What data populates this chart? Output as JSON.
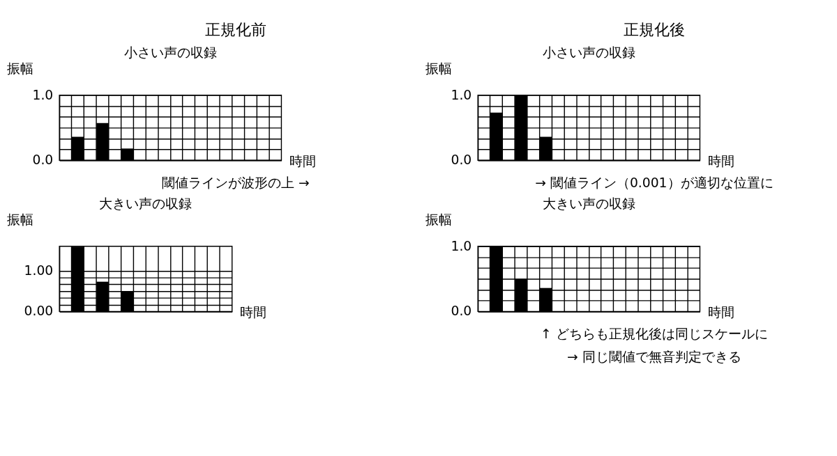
{
  "chart_data": [
    {
      "type": "bar",
      "title": "小さい声の収録",
      "xlabel": "時間",
      "ylabel": "振幅",
      "annotations": [
        "正規化前",
        "閾値ラインが波形の上 →"
      ],
      "categories": [
        null,
        null,
        null,
        null,
        null,
        null,
        null,
        null,
        null,
        null,
        null,
        null,
        null,
        null,
        null,
        null,
        null,
        null
      ],
      "values": [
        null,
        0.36,
        null,
        0.57,
        null,
        0.18,
        null,
        null,
        null,
        null,
        null,
        null,
        null,
        null,
        null,
        null,
        null,
        null
      ],
      "color": "#000000",
      "ylim": [
        0,
        1
      ],
      "yticks": [
        {
          "value": 0,
          "label": "0.0"
        },
        {
          "value": 0.1667,
          "label": null
        },
        {
          "value": 0.3333,
          "label": null
        },
        {
          "value": 0.5,
          "label": null
        },
        {
          "value": 0.6667,
          "label": null
        },
        {
          "value": 0.8333,
          "label": null
        },
        {
          "value": 1,
          "label": "1.0"
        }
      ],
      "grid": true,
      "tick_labels": "y"
    },
    {
      "type": "bar",
      "title": "小さい声の収録",
      "xlabel": "時間",
      "ylabel": "振幅",
      "annotations": [
        "正規化後",
        "→ 閾値ライン（0.001）が適切な位置に"
      ],
      "categories": [
        null,
        null,
        null,
        null,
        null,
        null,
        null,
        null,
        null,
        null,
        null,
        null,
        null,
        null,
        null,
        null,
        null,
        null
      ],
      "values": [
        null,
        0.73,
        null,
        1.0,
        null,
        0.36,
        null,
        null,
        null,
        null,
        null,
        null,
        null,
        null,
        null,
        null,
        null,
        null
      ],
      "color": "#000000",
      "ylim": [
        0,
        1
      ],
      "yticks": [
        {
          "value": 0,
          "label": "0.0"
        },
        {
          "value": 0.1667,
          "label": null
        },
        {
          "value": 0.3333,
          "label": null
        },
        {
          "value": 0.5,
          "label": null
        },
        {
          "value": 0.6667,
          "label": null
        },
        {
          "value": 0.8333,
          "label": null
        },
        {
          "value": 1,
          "label": "1.0"
        }
      ],
      "grid": true,
      "tick_labels": "y"
    },
    {
      "type": "bar",
      "title": "大きい声の収録",
      "xlabel": "時間",
      "ylabel": "振幅",
      "categories": [
        null,
        null,
        null,
        null,
        null,
        null,
        null,
        null,
        null,
        null,
        null,
        null,
        null,
        null
      ],
      "values": [
        null,
        1.59,
        null,
        0.73,
        null,
        0.5,
        null,
        null,
        null,
        null,
        null,
        null,
        null,
        null
      ],
      "color": "#000000",
      "ylim": [
        0,
        1.6
      ],
      "yticks": [
        {
          "value": 0,
          "label": "0.00"
        },
        {
          "value": 0.1667,
          "label": null
        },
        {
          "value": 0.3333,
          "label": null
        },
        {
          "value": 0.5,
          "label": null
        },
        {
          "value": 0.6667,
          "label": null
        },
        {
          "value": 0.8333,
          "label": null
        },
        {
          "value": 1,
          "label": "1.00"
        }
      ],
      "grid": true,
      "tick_labels": "y"
    },
    {
      "type": "bar",
      "title": "大きい声の収録",
      "xlabel": "時間",
      "ylabel": "振幅",
      "annotations": [
        "↑ どちらも正規化後は同じスケールに",
        "→ 同じ閾値で無音判定できる"
      ],
      "categories": [
        null,
        null,
        null,
        null,
        null,
        null,
        null,
        null,
        null,
        null,
        null,
        null,
        null,
        null,
        null,
        null,
        null,
        null
      ],
      "values": [
        null,
        1.0,
        null,
        0.5,
        null,
        0.36,
        null,
        null,
        null,
        null,
        null,
        null,
        null,
        null,
        null,
        null,
        null,
        null
      ],
      "color": "#000000",
      "ylim": [
        0,
        1
      ],
      "yticks": [
        {
          "value": 0,
          "label": "0.0"
        },
        {
          "value": 0.1667,
          "label": null
        },
        {
          "value": 0.3333,
          "label": null
        },
        {
          "value": 0.5,
          "label": null
        },
        {
          "value": 0.6667,
          "label": null
        },
        {
          "value": 0.8333,
          "label": null
        },
        {
          "value": 1,
          "label": "1.0"
        }
      ],
      "grid": true,
      "tick_labels": "y"
    }
  ]
}
